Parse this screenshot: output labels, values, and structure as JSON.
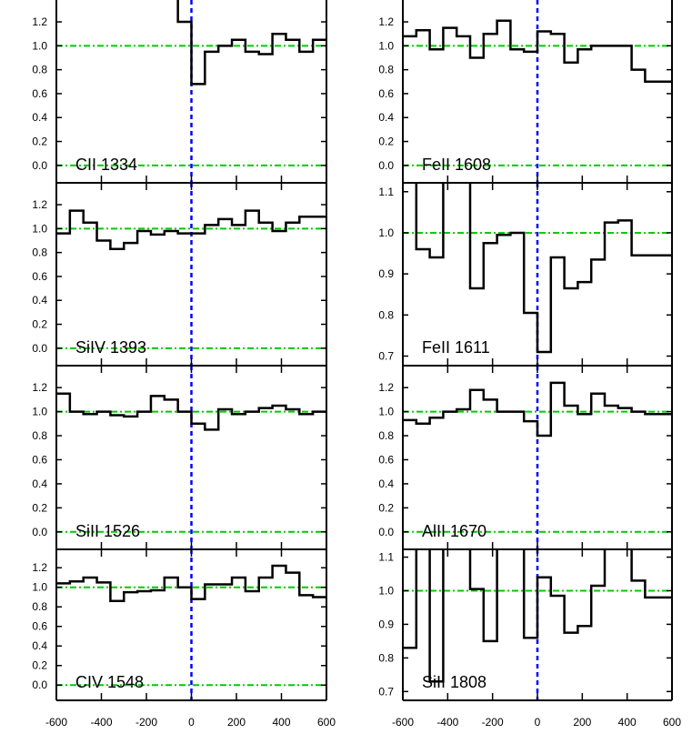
{
  "chart_data": {
    "type": "line",
    "colors": {
      "spectrum": "#000000",
      "continuum": "#00cc00",
      "zero_velocity": "#0000ff"
    },
    "x_ticks": [
      -600,
      -400,
      -200,
      0,
      200,
      400,
      600
    ],
    "xlim": [
      -600,
      600
    ],
    "panels": [
      {
        "label": "CII 1334",
        "ylim": [
          -0.1,
          1.36
        ],
        "yticks": [
          "0.0",
          "0.2",
          "0.4",
          "0.6",
          "0.8",
          "1.0",
          "1.2"
        ],
        "x": [
          -570,
          -510,
          -450,
          -390,
          -330,
          -270,
          -210,
          -150,
          -90,
          -30,
          30,
          90,
          150,
          210,
          270,
          330,
          390,
          450,
          510,
          570
        ],
        "values": [
          null,
          null,
          null,
          null,
          null,
          null,
          null,
          1.45,
          1.45,
          1.2,
          0.68,
          0.95,
          1.0,
          1.05,
          0.95,
          0.93,
          1.1,
          1.05,
          0.95,
          1.05
        ]
      },
      {
        "label": "SiIV 1393",
        "ylim": [
          -0.1,
          1.36
        ],
        "yticks": [
          "0.0",
          "0.2",
          "0.4",
          "0.6",
          "0.8",
          "1.0",
          "1.2"
        ],
        "x": [
          -570,
          -510,
          -450,
          -390,
          -330,
          -270,
          -210,
          -150,
          -90,
          -30,
          30,
          90,
          150,
          210,
          270,
          330,
          390,
          450,
          510,
          570
        ],
        "values": [
          0.96,
          1.15,
          1.05,
          0.9,
          0.83,
          0.88,
          0.98,
          0.95,
          0.98,
          0.96,
          0.96,
          1.03,
          1.08,
          1.03,
          1.15,
          1.05,
          0.98,
          1.05,
          1.1,
          1.1
        ]
      },
      {
        "label": "SiII 1526",
        "ylim": [
          -0.1,
          1.36
        ],
        "yticks": [
          "0.0",
          "0.2",
          "0.4",
          "0.6",
          "0.8",
          "1.0",
          "1.2"
        ],
        "x": [
          -570,
          -510,
          -450,
          -390,
          -330,
          -270,
          -210,
          -150,
          -90,
          -30,
          30,
          90,
          150,
          210,
          270,
          330,
          390,
          450,
          510,
          570
        ],
        "values": [
          1.15,
          1.0,
          0.98,
          1.0,
          0.97,
          0.96,
          1.0,
          1.13,
          1.1,
          1.0,
          0.9,
          0.85,
          1.02,
          0.98,
          1.0,
          1.03,
          1.05,
          1.02,
          0.98,
          1.0
        ]
      },
      {
        "label": "CIV 1548",
        "ylim": [
          -0.1,
          1.36
        ],
        "yticks": [
          "0.0",
          "0.2",
          "0.4",
          "0.6",
          "0.8",
          "1.0",
          "1.2"
        ],
        "x": [
          -570,
          -510,
          -450,
          -390,
          -330,
          -270,
          -210,
          -150,
          -90,
          -30,
          30,
          90,
          150,
          210,
          270,
          330,
          390,
          450,
          510,
          570
        ],
        "values": [
          1.04,
          1.06,
          1.1,
          1.05,
          0.86,
          0.95,
          0.96,
          0.97,
          1.1,
          1.0,
          0.88,
          1.03,
          1.03,
          1.1,
          0.96,
          1.1,
          1.22,
          1.15,
          0.92,
          0.9
        ]
      },
      {
        "label": "FeII 1608",
        "ylim": [
          -0.1,
          1.36
        ],
        "yticks": [
          "0.0",
          "0.2",
          "0.4",
          "0.6",
          "0.8",
          "1.0",
          "1.2"
        ],
        "x": [
          -570,
          -510,
          -450,
          -390,
          -330,
          -270,
          -210,
          -150,
          -90,
          -30,
          30,
          90,
          150,
          210,
          270,
          330,
          390,
          450,
          510,
          570
        ],
        "values": [
          1.08,
          1.13,
          0.97,
          1.15,
          1.08,
          0.9,
          1.1,
          1.21,
          0.97,
          0.95,
          1.12,
          1.1,
          0.86,
          0.97,
          1.0,
          1.0,
          1.0,
          0.8,
          0.7,
          0.7
        ]
      },
      {
        "label": "FeII 1611",
        "ylim": [
          0.69,
          1.115
        ],
        "yticks": [
          "0.7",
          "0.8",
          "0.9",
          "1.0",
          "1.1"
        ],
        "x": [
          -570,
          -510,
          -450,
          -390,
          -330,
          -270,
          -210,
          -150,
          -90,
          -30,
          30,
          90,
          150,
          210,
          270,
          330,
          390,
          450,
          510,
          570
        ],
        "values": [
          1.15,
          0.96,
          0.94,
          1.15,
          1.15,
          0.865,
          0.975,
          0.995,
          1.0,
          0.805,
          0.71,
          0.94,
          0.865,
          0.88,
          0.935,
          1.025,
          1.03,
          0.945,
          0.945,
          0.945
        ]
      },
      {
        "label": "AlII 1670",
        "ylim": [
          -0.1,
          1.36
        ],
        "yticks": [
          "0.0",
          "0.2",
          "0.4",
          "0.6",
          "0.8",
          "1.0",
          "1.2"
        ],
        "x": [
          -570,
          -510,
          -450,
          -390,
          -330,
          -270,
          -210,
          -150,
          -90,
          -30,
          30,
          90,
          150,
          210,
          270,
          330,
          390,
          450,
          510,
          570
        ],
        "values": [
          0.93,
          0.9,
          0.95,
          1.0,
          1.02,
          1.18,
          1.1,
          1.0,
          1.0,
          0.92,
          0.8,
          1.24,
          1.05,
          0.98,
          1.15,
          1.05,
          1.03,
          1.0,
          0.98,
          0.98
        ]
      },
      {
        "label": "SiII 1808",
        "ylim": [
          0.69,
          1.115
        ],
        "yticks": [
          "0.7",
          "0.8",
          "0.9",
          "1.0",
          "1.1"
        ],
        "x": [
          -570,
          -510,
          -450,
          -390,
          -330,
          -270,
          -210,
          -150,
          -90,
          -30,
          30,
          90,
          150,
          210,
          270,
          330,
          390,
          450,
          510,
          570
        ],
        "values": [
          0.83,
          1.15,
          0.73,
          1.15,
          1.15,
          1.005,
          0.85,
          1.15,
          1.15,
          0.86,
          1.04,
          0.985,
          0.875,
          0.895,
          1.015,
          1.15,
          1.15,
          1.03,
          0.98,
          0.98
        ]
      }
    ]
  }
}
